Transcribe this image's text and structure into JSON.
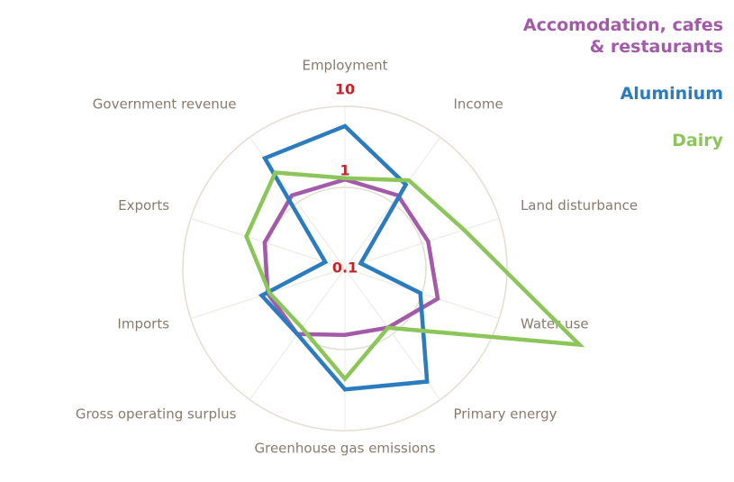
{
  "chart_data": {
    "type": "radar",
    "categories": [
      "Employment",
      "Income",
      "Land disturbance",
      "Water use",
      "Primary energy",
      "Greenhouse gas emissions",
      "Gross operating surplus",
      "Imports",
      "Exports",
      "Government revenue"
    ],
    "series": [
      {
        "name": "Accomodation, cafes & restaurants",
        "color": "#a35aa8",
        "values": [
          1.25,
          1.3,
          1.2,
          1.6,
          0.8,
          0.66,
          1.0,
          1.0,
          1.1,
          1.3
        ]
      },
      {
        "name": "Aluminium",
        "color": "#2b7bbf",
        "values": [
          5.7,
          1.9,
          0.16,
          0.95,
          5.3,
          3.1,
          1.0,
          1.2,
          0.18,
          4.8
        ]
      },
      {
        "name": "Dairy",
        "color": "#8cc55a",
        "values": [
          1.3,
          2.2,
          3.5,
          110,
          0.8,
          2.3,
          0.8,
          0.95,
          1.9,
          2.9
        ]
      }
    ],
    "ylim": [
      0.1,
      10
    ],
    "yticks": [
      0.1,
      1,
      10
    ],
    "log_scale": true,
    "grid": true
  }
}
